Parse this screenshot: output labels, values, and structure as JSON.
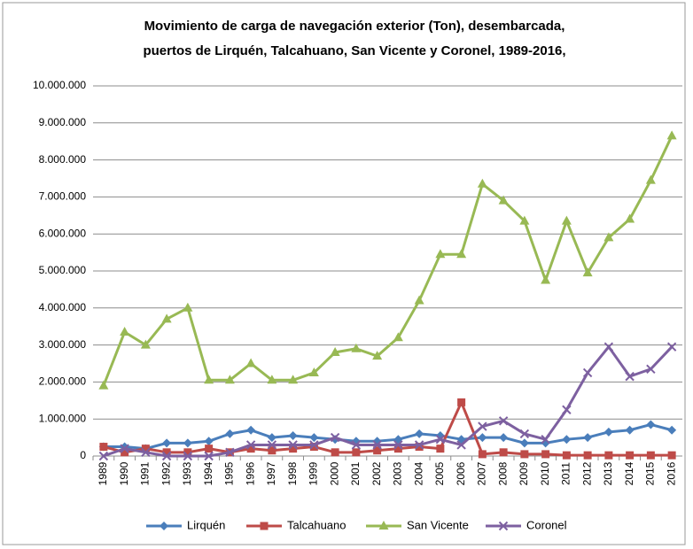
{
  "chart_data": {
    "type": "line",
    "title": [
      "Movimiento de carga de navegación exterior (Ton), desembarcada,",
      "puertos de Lirquén, Talcahuano, San Vicente y Coronel, 1989-2016,"
    ],
    "categories": [
      "1989",
      "1990",
      "1991",
      "1992",
      "1993",
      "1994",
      "1995",
      "1996",
      "1997",
      "1998",
      "1999",
      "2000",
      "2001",
      "2002",
      "2003",
      "2004",
      "2005",
      "2006",
      "2007",
      "2008",
      "2009",
      "2010",
      "2011",
      "2012",
      "2013",
      "2014",
      "2015",
      "2016"
    ],
    "series": [
      {
        "name": "Lirquén",
        "color": "#4a7ebb",
        "marker": "diamond",
        "values": [
          250000,
          250000,
          200000,
          350000,
          350000,
          400000,
          600000,
          700000,
          500000,
          550000,
          500000,
          450000,
          400000,
          400000,
          450000,
          600000,
          550000,
          450000,
          500000,
          500000,
          350000,
          350000,
          450000,
          500000,
          650000,
          700000,
          850000,
          700000
        ]
      },
      {
        "name": "Talcahuano",
        "color": "#be4b48",
        "marker": "square",
        "values": [
          250000,
          100000,
          200000,
          100000,
          100000,
          200000,
          100000,
          200000,
          150000,
          200000,
          250000,
          100000,
          100000,
          150000,
          200000,
          250000,
          200000,
          1450000,
          50000,
          100000,
          50000,
          50000,
          20000,
          20000,
          20000,
          20000,
          20000,
          20000
        ]
      },
      {
        "name": "San Vicente",
        "color": "#98b954",
        "marker": "triangle",
        "values": [
          1900000,
          3350000,
          3000000,
          3700000,
          4000000,
          2050000,
          2050000,
          2500000,
          2050000,
          2050000,
          2250000,
          2800000,
          2900000,
          2700000,
          3200000,
          4200000,
          5450000,
          5450000,
          7350000,
          6900000,
          6350000,
          4750000,
          6350000,
          4950000,
          5900000,
          6400000,
          7450000,
          8650000
        ]
      },
      {
        "name": "Coronel",
        "color": "#7d60a0",
        "marker": "x",
        "values": [
          0,
          200000,
          100000,
          0,
          0,
          0,
          100000,
          300000,
          300000,
          300000,
          300000,
          500000,
          300000,
          300000,
          300000,
          300000,
          450000,
          300000,
          800000,
          950000,
          600000,
          450000,
          1250000,
          2250000,
          2950000,
          2150000,
          2350000,
          2950000
        ]
      }
    ],
    "ylim": [
      0,
      10000000
    ],
    "yticks": [
      0,
      {
        "value": 1000000,
        "label": "1.000.000"
      },
      {
        "value": 2000000,
        "label": "2.000.000"
      },
      {
        "value": 3000000,
        "label": "3.000.000"
      },
      {
        "value": 4000000,
        "label": "4.000.000"
      },
      {
        "value": 5000000,
        "label": "5.000.000"
      },
      {
        "value": 6000000,
        "label": "6.000.000"
      },
      {
        "value": 7000000,
        "label": "7.000.000"
      },
      {
        "value": 8000000,
        "label": "8.000.000"
      },
      {
        "value": 9000000,
        "label": "9.000.000"
      },
      {
        "value": 10000000,
        "label": "10.000.000"
      }
    ],
    "grid": true,
    "legend": "bottom"
  }
}
